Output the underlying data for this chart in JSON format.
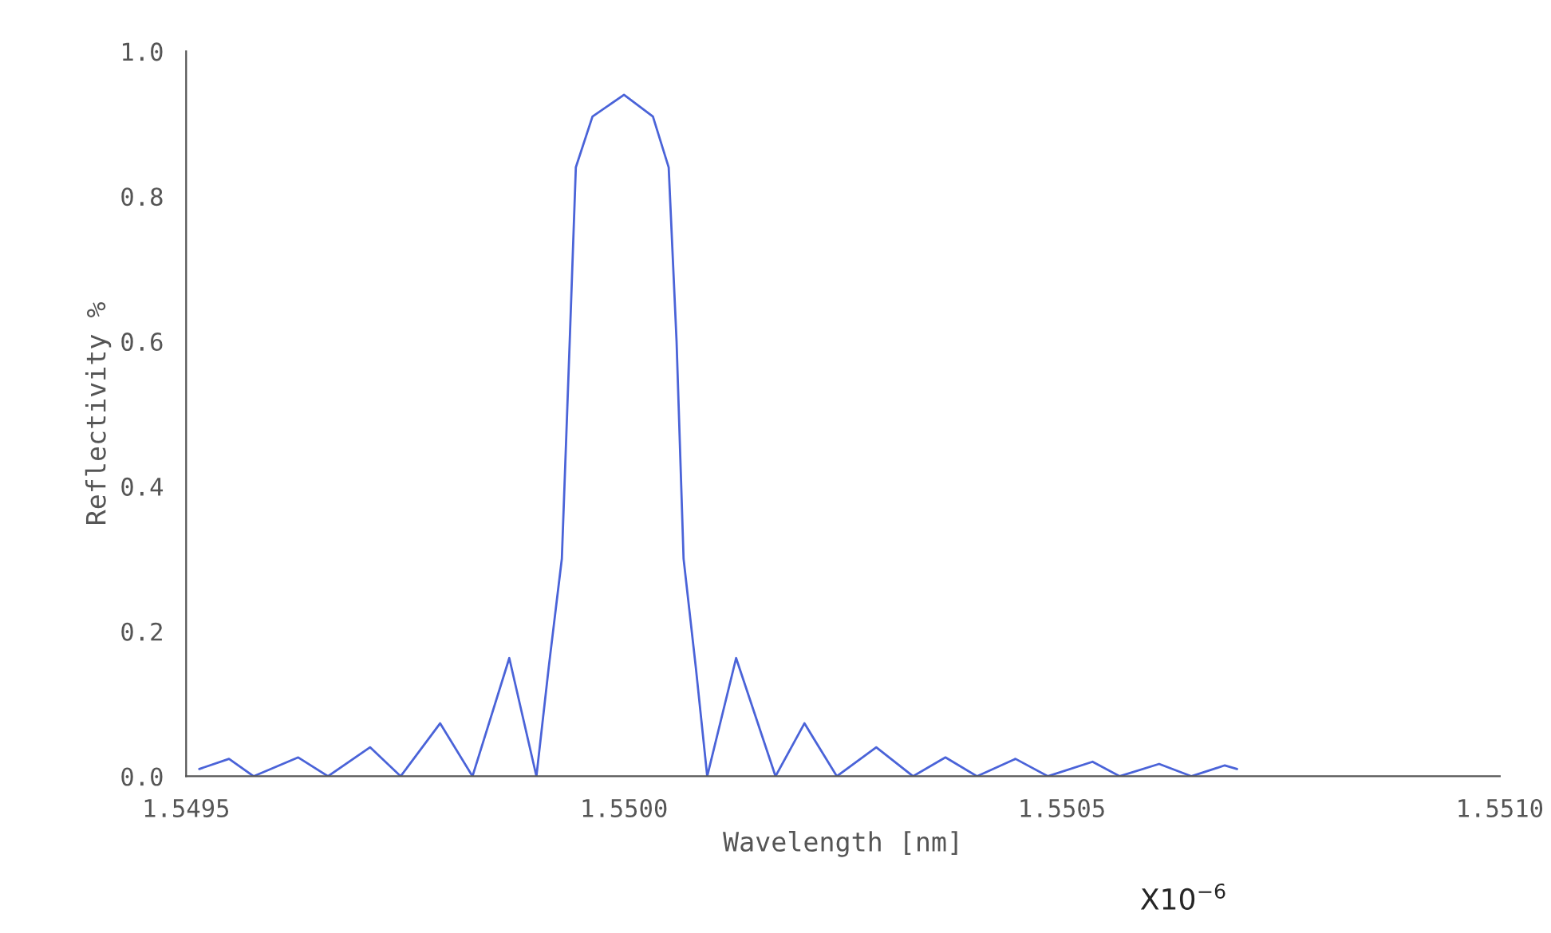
{
  "chart_data": {
    "type": "line",
    "xlabel": "Wavelength [nm]",
    "ylabel": "Reflectivity %",
    "annotations": [
      "X10$^{−6}$"
    ],
    "x": [
      1.549515,
      1.549549,
      1.549577,
      1.549628,
      1.549662,
      1.54971,
      1.549745,
      1.54979,
      1.549827,
      1.549869,
      1.5499,
      1.549914,
      1.549929,
      1.549938,
      1.549945,
      1.549964,
      1.55,
      1.550033,
      1.550051,
      1.55006,
      1.550068,
      1.550082,
      1.550095,
      1.550128,
      1.550173,
      1.550206,
      1.550243,
      1.550288,
      1.55033,
      1.550367,
      1.550403,
      1.550447,
      1.550484,
      1.550535,
      1.550566,
      1.550611,
      1.550648,
      1.550686,
      1.5507
    ],
    "series": [
      {
        "color": "#4a63d8",
        "values": [
          0.01,
          0.024,
          0.0,
          0.026,
          0.0,
          0.04,
          0.0,
          0.073,
          0.0,
          0.163,
          0.0,
          0.15,
          0.3,
          0.6,
          0.84,
          0.91,
          0.94,
          0.91,
          0.84,
          0.6,
          0.3,
          0.15,
          0.0,
          0.163,
          0.0,
          0.073,
          0.0,
          0.04,
          0.0,
          0.026,
          0.0,
          0.024,
          0.0,
          0.02,
          0.0,
          0.017,
          0.0,
          0.015,
          0.01
        ]
      }
    ],
    "xlim": [
      1.5495,
      1.551
    ],
    "xticks": [
      {
        "value": 1.5495,
        "label": "1.5495"
      },
      {
        "value": 1.55,
        "label": "1.5500"
      },
      {
        "value": 1.5505,
        "label": "1.5505"
      },
      {
        "value": 1.551,
        "label": "1.5510"
      }
    ],
    "ylim": [
      0,
      1
    ],
    "yticks": [
      {
        "value": 0,
        "label": "0.0"
      },
      {
        "value": 0.2,
        "label": "0.2"
      },
      {
        "value": 0.4,
        "label": "0.4"
      },
      {
        "value": 0.6,
        "label": "0.6"
      },
      {
        "value": 0.8,
        "label": "0.8"
      },
      {
        "value": 1,
        "label": "1.0"
      }
    ],
    "grid": false,
    "marker": "none",
    "line_style": "solid"
  }
}
